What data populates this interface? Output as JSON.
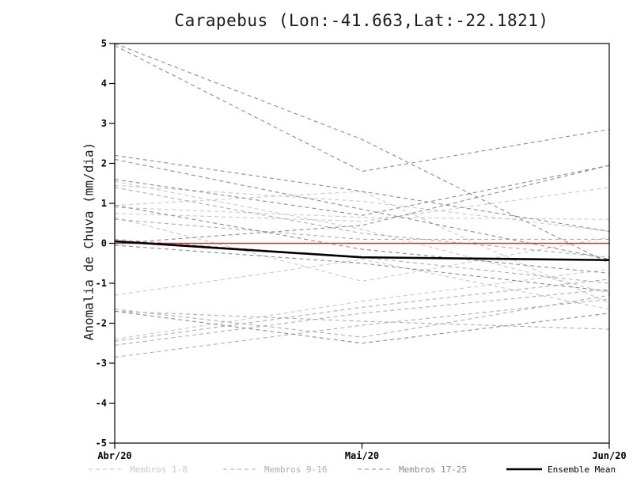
{
  "chart_data": {
    "type": "line",
    "title": "Carapebus (Lon:-41.663,Lat:-22.1821)",
    "ylabel": "Anomalia de Chuva (mm/dia)",
    "xlabel": "",
    "categories": [
      "Abr/20",
      "Mai/20",
      "Jun/20"
    ],
    "ylim": [
      -5,
      5
    ],
    "y_ticks": [
      -5,
      -4,
      -3,
      -2,
      -1,
      0,
      1,
      2,
      3,
      4,
      5
    ],
    "grid": false,
    "legend_position": "bottom",
    "zero_line": {
      "value": 0,
      "color": "#ff2020"
    },
    "groups": [
      {
        "name": "Membros 1-8",
        "color": "#c9c9c9",
        "style": "dashed",
        "members": [
          [
            1.55,
            0.35,
            -1.25
          ],
          [
            1.45,
            1.05,
            0.3
          ],
          [
            0.95,
            1.3,
            -1.5
          ],
          [
            0.75,
            0.55,
            1.4
          ],
          [
            0.65,
            -0.95,
            0.15
          ],
          [
            0.9,
            0.65,
            0.6
          ],
          [
            -1.3,
            -0.4,
            -1.65
          ],
          [
            -2.4,
            -1.45,
            -0.65
          ]
        ]
      },
      {
        "name": "Membros 9-16",
        "color": "#aeaeae",
        "style": "dashed",
        "members": [
          [
            -2.45,
            -1.6,
            -0.9
          ],
          [
            -2.55,
            -1.75,
            -1.15
          ],
          [
            -2.85,
            -2.05,
            -1.4
          ],
          [
            -1.7,
            -1.95,
            -2.15
          ],
          [
            -1.65,
            -2.35,
            -1.3
          ],
          [
            0.1,
            -0.35,
            -1.0
          ],
          [
            0.6,
            0.1,
            0.1
          ],
          [
            1.4,
            0.25,
            -0.35
          ]
        ]
      },
      {
        "name": "Membros 17-25",
        "color": "#8c8c8c",
        "style": "dashed",
        "members": [
          [
            5.0,
            2.6,
            -0.5
          ],
          [
            4.95,
            1.8,
            2.85
          ],
          [
            2.2,
            1.3,
            0.3
          ],
          [
            1.6,
            0.7,
            1.95
          ],
          [
            0.0,
            0.45,
            1.95
          ],
          [
            -0.05,
            -0.5,
            -1.2
          ],
          [
            -1.7,
            -2.5,
            -1.75
          ],
          [
            0.95,
            -0.15,
            -0.75
          ],
          [
            2.1,
            0.85,
            -0.4
          ]
        ]
      }
    ],
    "ensemble_mean": {
      "name": "Ensemble Mean",
      "color": "#000000",
      "style": "solid",
      "values": [
        0.05,
        -0.35,
        -0.42
      ]
    }
  }
}
